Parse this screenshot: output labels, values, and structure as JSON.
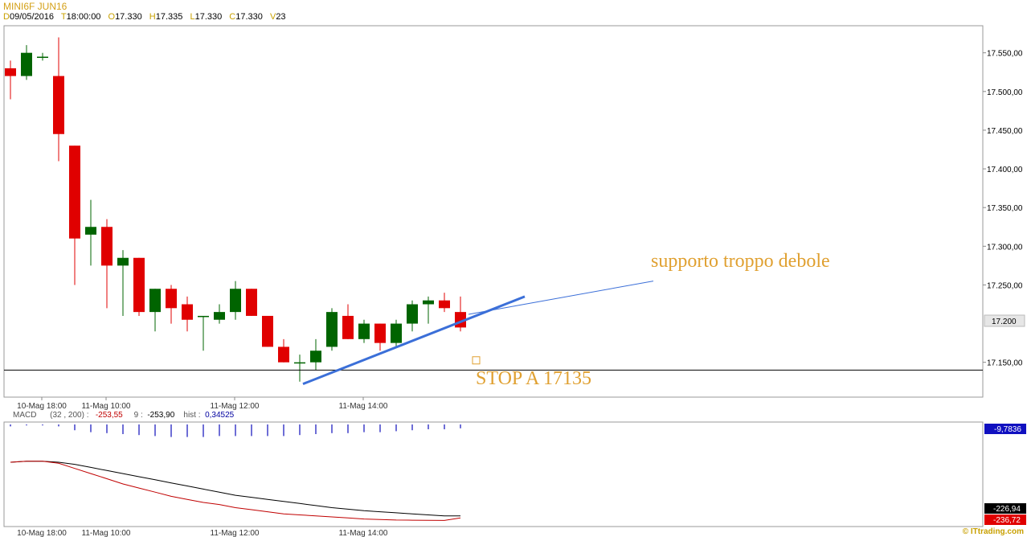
{
  "header": {
    "symbol": "MINI6F JUN16",
    "d_label": "D",
    "date": "09/05/2016",
    "t_label": "T",
    "time": "18:00:00",
    "o_label": "O",
    "open": "17.330",
    "h_label": "H",
    "high": "17.335",
    "l_label": "L",
    "low": "17.330",
    "c_label": "C",
    "close": "17.330",
    "v_label": "V",
    "volume": "23"
  },
  "macd_header": {
    "name": "MACD",
    "params": "(32 , 200) :",
    "macd_value": "-253,55",
    "signal_label": "9 :",
    "signal_value": "-253,90",
    "hist_label": "hist :",
    "hist_value": "0,34525"
  },
  "annotations": {
    "support_text": "supporto troppo debole",
    "stop_text": "STOP A 17135"
  },
  "price_axis": {
    "ticks": [
      "17.550,00",
      "17.500,00",
      "17.450,00",
      "17.400,00",
      "17.350,00",
      "17.300,00",
      "17.250,00",
      "17.150,00"
    ],
    "current_label": "17.200"
  },
  "macd_axis": {
    "hist_label": "-9,7836",
    "signal_label": "-226,94",
    "macd_label": "-236,72"
  },
  "time_labels": [
    "10-Mag 18:00",
    "11-Mag 10:00",
    "11-Mag 12:00",
    "11-Mag 14:00"
  ],
  "credit": "© ITtrading.com",
  "colors": {
    "up": "#006400",
    "down": "#e00000",
    "trendline": "#3b6fd8",
    "annotation": "#e0a030",
    "macd_line": "#c00000",
    "signal_line": "#000000",
    "hist": "#2020c0"
  },
  "chart_data": {
    "type": "candlestick",
    "ylim": [
      17105,
      17585
    ],
    "horizontal_line": 17140,
    "stop_marker": 17152,
    "candles": [
      {
        "o": 17530,
        "h": 17540,
        "l": 17490,
        "c": 17520
      },
      {
        "o": 17520,
        "h": 17560,
        "l": 17515,
        "c": 17550
      },
      {
        "o": 17545,
        "h": 17550,
        "l": 17540,
        "c": 17545
      },
      {
        "o": 17520,
        "h": 17570,
        "l": 17410,
        "c": 17445
      },
      {
        "o": 17430,
        "h": 17430,
        "l": 17250,
        "c": 17310
      },
      {
        "o": 17315,
        "h": 17360,
        "l": 17275,
        "c": 17325
      },
      {
        "o": 17325,
        "h": 17335,
        "l": 17220,
        "c": 17275
      },
      {
        "o": 17275,
        "h": 17295,
        "l": 17210,
        "c": 17285
      },
      {
        "o": 17285,
        "h": 17285,
        "l": 17210,
        "c": 17215
      },
      {
        "o": 17215,
        "h": 17245,
        "l": 17190,
        "c": 17245
      },
      {
        "o": 17245,
        "h": 17250,
        "l": 17200,
        "c": 17220
      },
      {
        "o": 17225,
        "h": 17235,
        "l": 17190,
        "c": 17205
      },
      {
        "o": 17210,
        "h": 17210,
        "l": 17165,
        "c": 17210
      },
      {
        "o": 17205,
        "h": 17225,
        "l": 17200,
        "c": 17215
      },
      {
        "o": 17215,
        "h": 17255,
        "l": 17205,
        "c": 17245
      },
      {
        "o": 17245,
        "h": 17245,
        "l": 17210,
        "c": 17210
      },
      {
        "o": 17210,
        "h": 17210,
        "l": 17170,
        "c": 17170
      },
      {
        "o": 17170,
        "h": 17180,
        "l": 17150,
        "c": 17150
      },
      {
        "o": 17150,
        "h": 17160,
        "l": 17125,
        "c": 17150
      },
      {
        "o": 17150,
        "h": 17180,
        "l": 17140,
        "c": 17165
      },
      {
        "o": 17170,
        "h": 17220,
        "l": 17165,
        "c": 17215
      },
      {
        "o": 17210,
        "h": 17225,
        "l": 17180,
        "c": 17180
      },
      {
        "o": 17180,
        "h": 17205,
        "l": 17175,
        "c": 17200
      },
      {
        "o": 17200,
        "h": 17200,
        "l": 17165,
        "c": 17175
      },
      {
        "o": 17175,
        "h": 17205,
        "l": 17170,
        "c": 17200
      },
      {
        "o": 17200,
        "h": 17230,
        "l": 17190,
        "c": 17225
      },
      {
        "o": 17225,
        "h": 17235,
        "l": 17200,
        "c": 17230
      },
      {
        "o": 17230,
        "h": 17240,
        "l": 17215,
        "c": 17220
      },
      {
        "o": 17215,
        "h": 17235,
        "l": 17190,
        "c": 17195
      }
    ],
    "trendline_thick": {
      "from": {
        "bar": 18.2,
        "price": 17122
      },
      "to": {
        "bar": 32.0,
        "price": 17235
      }
    },
    "trendline_thin": {
      "from": {
        "bar": 28.5,
        "price": 17212
      },
      "to": {
        "bar": 40.0,
        "price": 17255
      }
    },
    "macd": {
      "ylim": [
        -260,
        10
      ],
      "macd": [
        -200,
        -199,
        -199,
        -201,
        -206,
        -211,
        -216,
        -221,
        -225,
        -229,
        -233,
        -236,
        -239,
        -241,
        -244,
        -246,
        -248,
        -250,
        -251,
        -252,
        -253,
        -254,
        -255,
        -255.5,
        -256,
        -256.2,
        -256.3,
        -256.4,
        -254
      ],
      "signal": [
        -200,
        -199,
        -199,
        -200,
        -202,
        -205,
        -208,
        -211,
        -214,
        -217,
        -220,
        -223,
        -226,
        -229,
        -232,
        -234,
        -236,
        -238,
        -240,
        -242,
        -244,
        -245.5,
        -247,
        -248,
        -249,
        -250,
        -251,
        -252,
        -252
      ],
      "hist": [
        -2,
        -1,
        -1,
        -2,
        -6,
        -8,
        -9,
        -10,
        -11,
        -12,
        -13,
        -13,
        -13,
        -12,
        -12,
        -12,
        -12,
        -12,
        -11,
        -10,
        -9,
        -9,
        -8,
        -8,
        -7,
        -6,
        -5,
        -5,
        -4
      ]
    }
  }
}
